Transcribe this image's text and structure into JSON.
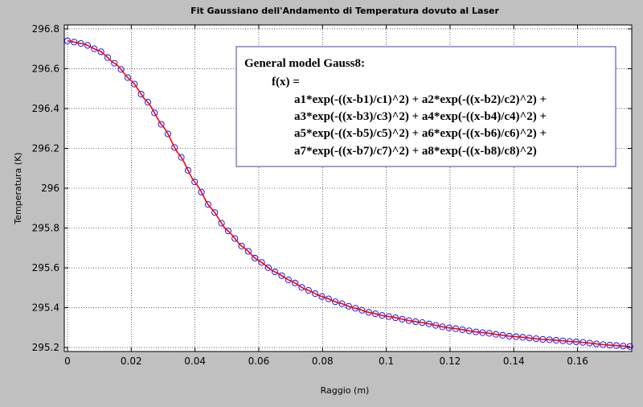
{
  "chart_data": {
    "type": "scatter",
    "title": "Fit Gaussiano dell'Andamento di Temperatura dovuto al Laser",
    "xlabel": "Raggio (m)",
    "ylabel": "Temperatura (K)",
    "xlim": [
      -0.001,
      0.177
    ],
    "ylim": [
      295.18,
      296.82
    ],
    "xticks": [
      0,
      0.02,
      0.04,
      0.06,
      0.08,
      0.1,
      0.12,
      0.14,
      0.16
    ],
    "xtick_labels": [
      "0",
      "0.02",
      "0.04",
      "0.06",
      "0.08",
      "0.1",
      "0.12",
      "0.14",
      "0.16"
    ],
    "yticks": [
      295.2,
      295.4,
      295.6,
      295.8,
      296,
      296.2,
      296.4,
      296.6,
      296.8
    ],
    "ytick_labels": [
      "295.2",
      "295.4",
      "295.6",
      "295.8",
      "296",
      "296.2",
      "296.4",
      "296.6",
      "296.8"
    ],
    "grid": true,
    "legend_box": {
      "placement": "top-right",
      "lines": [
        "General model Gauss8:",
        "f(x) =",
        "a1*exp(-((x-b1)/c1)^2) + a2*exp(-((x-b2)/c2)^2) +",
        "a3*exp(-((x-b3)/c3)^2) + a4*exp(-((x-b4)/c4)^2) +",
        "a5*exp(-((x-b5)/c5)^2) + a6*exp(-((x-b6)/c6)^2) +",
        "a7*exp(-((x-b7)/c7)^2) + a8*exp(-((x-b8)/c8)^2)"
      ]
    },
    "series": [
      {
        "style": "markers",
        "marker": "circle",
        "color": "#0000ff",
        "x_range": [
          0,
          0.1765
        ],
        "x_step": 0.0021,
        "curve_points": {
          "x": [
            0,
            0.005,
            0.01,
            0.015,
            0.02,
            0.025,
            0.03,
            0.035,
            0.04,
            0.045,
            0.05,
            0.055,
            0.06,
            0.065,
            0.07,
            0.075,
            0.08,
            0.085,
            0.09,
            0.095,
            0.1,
            0.11,
            0.12,
            0.13,
            0.14,
            0.15,
            0.16,
            0.17,
            0.1765
          ],
          "y": [
            296.74,
            296.725,
            296.69,
            296.625,
            296.54,
            296.435,
            296.31,
            296.17,
            296.03,
            295.9,
            295.79,
            295.705,
            295.635,
            295.58,
            295.535,
            295.49,
            295.455,
            295.425,
            295.398,
            295.375,
            295.357,
            295.328,
            295.298,
            295.275,
            295.255,
            295.24,
            295.228,
            295.212,
            295.205
          ]
        }
      },
      {
        "style": "line",
        "color": "#ff0000",
        "same_as_markers": true
      }
    ]
  }
}
